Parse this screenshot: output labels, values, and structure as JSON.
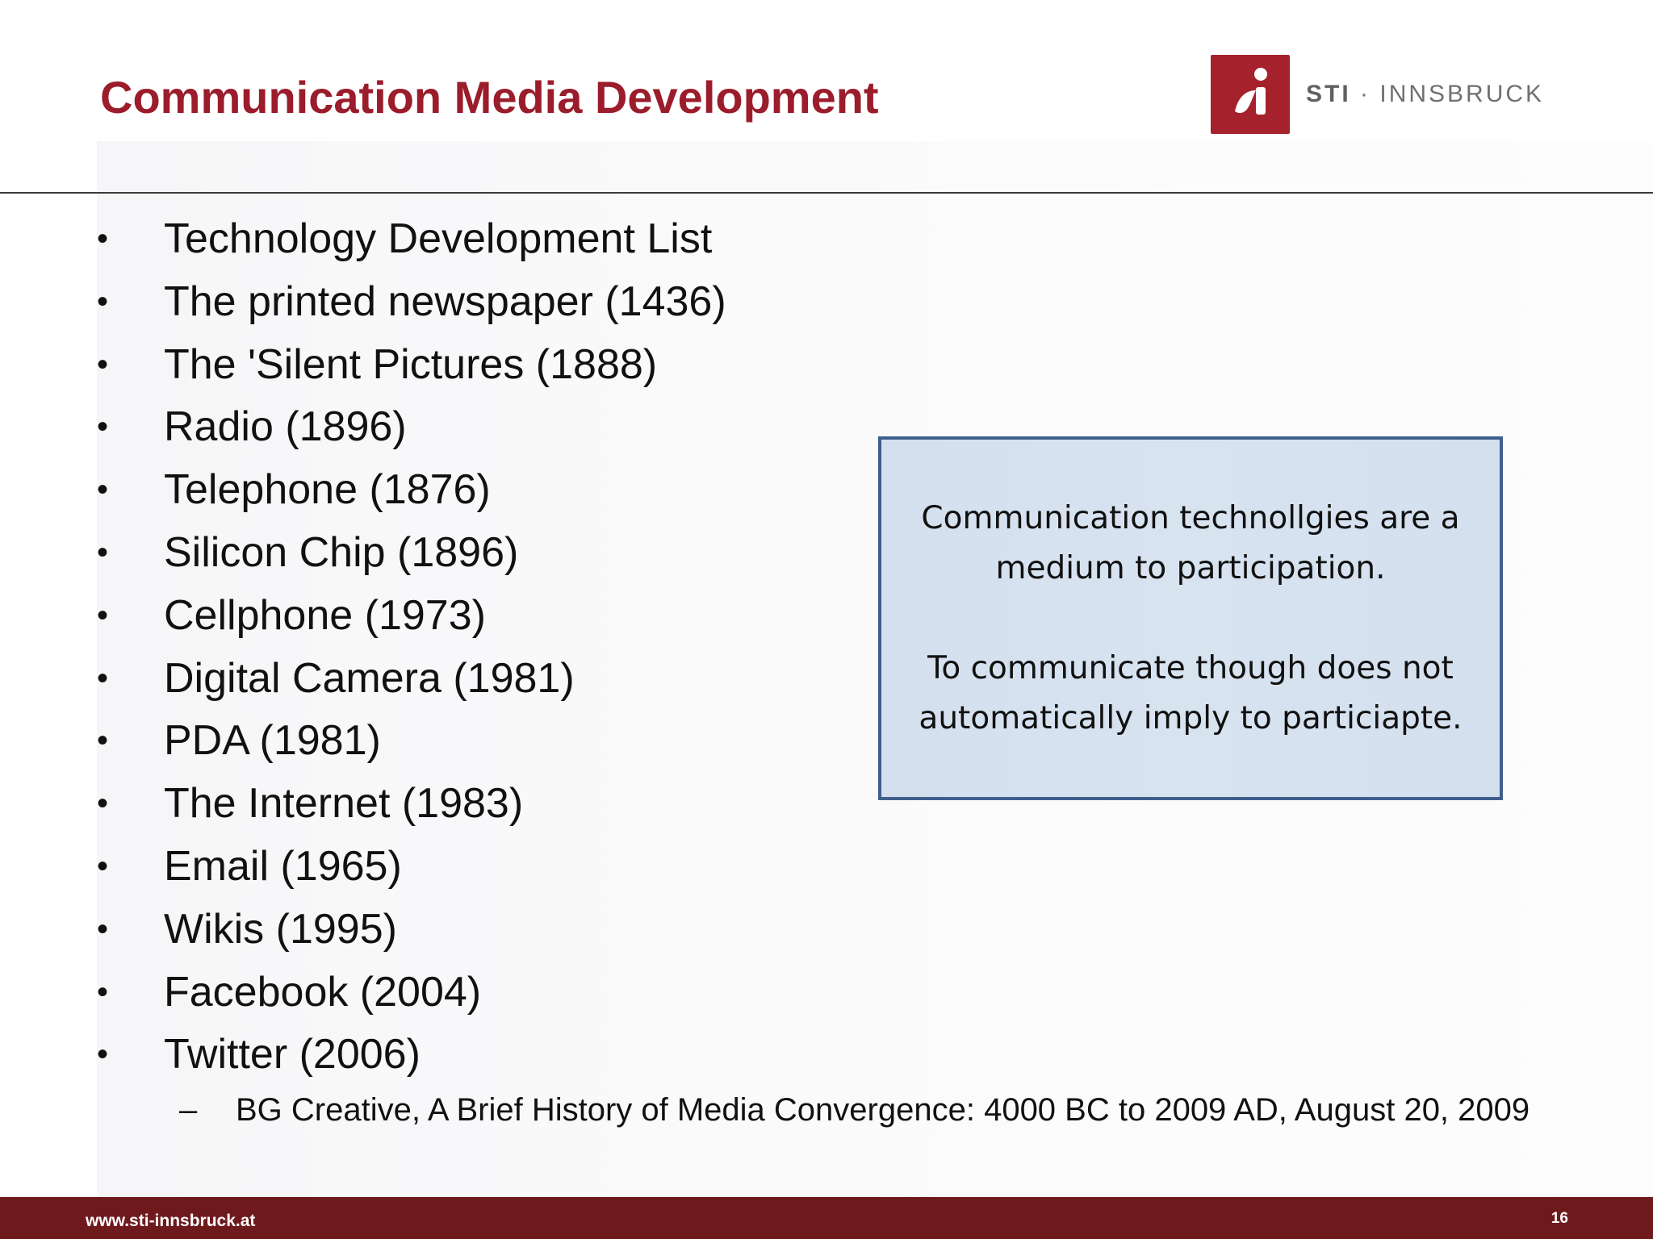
{
  "slide": {
    "title": "Communication Media Development"
  },
  "logo": {
    "brand": "STI",
    "separator": "·",
    "place": "INNSBRUCK",
    "accent_color": "#a5222d"
  },
  "bullets": [
    "Technology Development List",
    "The printed newspaper (1436)",
    "The 'Silent Pictures (1888)",
    "Radio (1896)",
    "Telephone (1876)",
    "Silicon Chip (1896)",
    "Cellphone (1973)",
    "Digital Camera (1981)",
    "PDA (1981)",
    "The Internet (1983)",
    "Email (1965)",
    "Wikis (1995)",
    "Facebook (2004)",
    "Twitter (2006)"
  ],
  "bullet_symbol": "•",
  "sub_bullet": {
    "symbol": "–",
    "text": "BG Creative, A Brief History of Media Convergence: 4000 BC to 2009 AD, August 20, 2009"
  },
  "note_box": {
    "paragraph_1": "Communication technollgies are a medium to participation.",
    "paragraph_2": "To communicate though does not automatically imply to particiapte."
  },
  "footer": {
    "url": "www.sti-innsbruck.at",
    "page_number": "16",
    "color": "#6e1a1d"
  }
}
